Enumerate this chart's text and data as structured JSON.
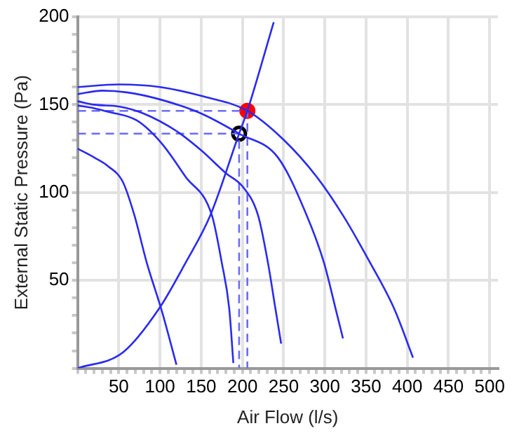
{
  "chart_data": {
    "type": "line",
    "xlabel": "Air Flow (l/s)",
    "ylabel": "External Static Pressure (Pa)",
    "xlim": [
      0,
      510
    ],
    "ylim": [
      0,
      200
    ],
    "xticks": [
      {
        "value": 0,
        "label": null
      },
      {
        "value": 10,
        "label": null
      },
      {
        "value": 20,
        "label": null
      },
      {
        "value": 30,
        "label": null
      },
      {
        "value": 40,
        "label": null
      },
      50,
      {
        "value": 60,
        "label": null
      },
      {
        "value": 70,
        "label": null
      },
      {
        "value": 80,
        "label": null
      },
      {
        "value": 90,
        "label": null
      },
      100,
      {
        "value": 110,
        "label": null
      },
      {
        "value": 120,
        "label": null
      },
      {
        "value": 130,
        "label": null
      },
      {
        "value": 140,
        "label": null
      },
      150,
      {
        "value": 160,
        "label": null
      },
      {
        "value": 170,
        "label": null
      },
      {
        "value": 180,
        "label": null
      },
      {
        "value": 190,
        "label": null
      },
      200,
      {
        "value": 210,
        "label": null
      },
      {
        "value": 220,
        "label": null
      },
      {
        "value": 230,
        "label": null
      },
      {
        "value": 240,
        "label": null
      },
      250,
      {
        "value": 260,
        "label": null
      },
      {
        "value": 270,
        "label": null
      },
      {
        "value": 280,
        "label": null
      },
      {
        "value": 290,
        "label": null
      },
      300,
      {
        "value": 310,
        "label": null
      },
      {
        "value": 320,
        "label": null
      },
      {
        "value": 330,
        "label": null
      },
      {
        "value": 340,
        "label": null
      },
      350,
      {
        "value": 360,
        "label": null
      },
      {
        "value": 370,
        "label": null
      },
      {
        "value": 380,
        "label": null
      },
      {
        "value": 390,
        "label": null
      },
      400,
      {
        "value": 410,
        "label": null
      },
      {
        "value": 420,
        "label": null
      },
      {
        "value": 430,
        "label": null
      },
      {
        "value": 440,
        "label": null
      },
      450,
      {
        "value": 460,
        "label": null
      },
      {
        "value": 470,
        "label": null
      },
      {
        "value": 480,
        "label": null
      },
      {
        "value": 490,
        "label": null
      },
      500
    ],
    "yticks": [
      {
        "value": 0,
        "label": null
      },
      {
        "value": 10,
        "label": null
      },
      {
        "value": 20,
        "label": null
      },
      {
        "value": 30,
        "label": null
      },
      {
        "value": 40,
        "label": null
      },
      50,
      {
        "value": 60,
        "label": null
      },
      {
        "value": 70,
        "label": null
      },
      {
        "value": 80,
        "label": null
      },
      {
        "value": 90,
        "label": null
      },
      100,
      {
        "value": 110,
        "label": null
      },
      {
        "value": 120,
        "label": null
      },
      {
        "value": 130,
        "label": null
      },
      {
        "value": 140,
        "label": null
      },
      150,
      {
        "value": 160,
        "label": null
      },
      {
        "value": 170,
        "label": null
      },
      {
        "value": 180,
        "label": null
      },
      {
        "value": 190,
        "label": null
      },
      200
    ],
    "grid": true,
    "legend": false,
    "marker": "none",
    "line_style": "solid",
    "series": [
      {
        "color": "#2a2af0",
        "x": [
          0,
          20,
          37,
          55,
          69,
          84,
          102,
          120
        ],
        "values": [
          125,
          120,
          115,
          106,
          87,
          60,
          33,
          2
        ]
      },
      {
        "color": "#2a2af0",
        "x": [
          0,
          20,
          37,
          72,
          102,
          131,
          163,
          175,
          184,
          189
        ],
        "values": [
          149.5,
          148,
          146,
          141,
          128,
          109,
          87,
          60,
          34,
          3
        ]
      },
      {
        "color": "#2a2af0",
        "x": [
          0,
          20,
          50,
          80,
          120,
          150,
          180,
          201,
          219,
          231,
          240,
          247
        ],
        "values": [
          152,
          150,
          149,
          145,
          135,
          124,
          111,
          103,
          87,
          60,
          34,
          14
        ]
      },
      {
        "color": "#2a2af0",
        "x": [
          0,
          30,
          60,
          100,
          150,
          196,
          243,
          278,
          299,
          313,
          322
        ],
        "values": [
          156,
          158,
          157,
          153,
          145,
          133.5,
          120,
          87,
          60,
          34,
          17
        ]
      },
      {
        "color": "#2a2af0",
        "x": [
          0,
          50,
          100,
          150,
          206,
          250,
          290,
          322,
          355,
          384,
          407
        ],
        "values": [
          160,
          161.5,
          160,
          155,
          146.5,
          130,
          109,
          87,
          60,
          34,
          6
        ]
      },
      {
        "color": "#2a2af0",
        "x": [
          0,
          55,
          99,
          131,
          161,
          196,
          206,
          238
        ],
        "values": [
          0,
          9,
          34,
          60,
          87,
          133.5,
          146.5,
          197
        ]
      },
      {
        "color": "#6b6bf5",
        "line_style": "dashed",
        "x": [
          0,
          206,
          206
        ],
        "values": [
          146.5,
          146.5,
          0
        ]
      },
      {
        "color": "#6b6bf5",
        "line_style": "dashed",
        "x": [
          0,
          196,
          196
        ],
        "values": [
          133.5,
          133.5,
          0
        ]
      },
      {
        "type": "scatter",
        "marker": "circle",
        "color": "#ff0000",
        "x": [
          206
        ],
        "values": [
          146.5
        ]
      },
      {
        "type": "scatter",
        "marker": "circle",
        "color": "#ffffff",
        "x": [
          196
        ],
        "values": [
          133.5
        ]
      }
    ]
  }
}
